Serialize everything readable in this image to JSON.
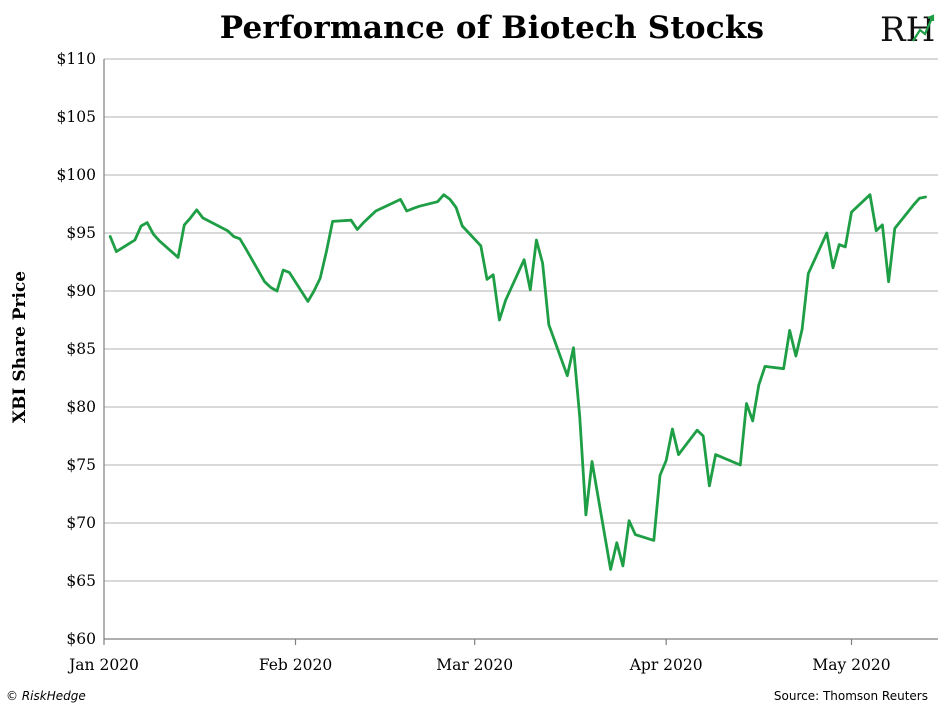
{
  "chart_data": {
    "type": "line",
    "title": "Performance of Biotech Stocks",
    "ylabel": "XBI Share Price",
    "xlabel": "",
    "ylim": [
      60,
      110
    ],
    "yticks": [
      60,
      65,
      70,
      75,
      80,
      85,
      90,
      95,
      100,
      105,
      110
    ],
    "ytick_labels": [
      "$60",
      "$65",
      "$70",
      "$75",
      "$80",
      "$85",
      "$90",
      "$95",
      "$100",
      "$105",
      "$110"
    ],
    "xlim": [
      "2020-01-01",
      "2020-05-15"
    ],
    "xticks": [
      {
        "date": "2020-01-01",
        "label": "Jan 2020"
      },
      {
        "date": "2020-02-01",
        "label": "Feb 2020"
      },
      {
        "date": "2020-03-01",
        "label": "Mar 2020"
      },
      {
        "date": "2020-04-01",
        "label": "Apr 2020"
      },
      {
        "date": "2020-05-01",
        "label": "May 2020"
      }
    ],
    "grid": "horizontal",
    "line_color": "#1e9e45",
    "series": [
      {
        "x": [
          "2020-01-02",
          "2020-01-03",
          "2020-01-06",
          "2020-01-07",
          "2020-01-08",
          "2020-01-09",
          "2020-01-10",
          "2020-01-13",
          "2020-01-14",
          "2020-01-15",
          "2020-01-16",
          "2020-01-17",
          "2020-01-21",
          "2020-01-22",
          "2020-01-23",
          "2020-01-24",
          "2020-01-27",
          "2020-01-28",
          "2020-01-29",
          "2020-01-30",
          "2020-01-31",
          "2020-02-03",
          "2020-02-04",
          "2020-02-05",
          "2020-02-06",
          "2020-02-07",
          "2020-02-10",
          "2020-02-11",
          "2020-02-12",
          "2020-02-13",
          "2020-02-14",
          "2020-02-18",
          "2020-02-19",
          "2020-02-20",
          "2020-02-21",
          "2020-02-24",
          "2020-02-25",
          "2020-02-26",
          "2020-02-27",
          "2020-02-28",
          "2020-03-02",
          "2020-03-03",
          "2020-03-04",
          "2020-03-05",
          "2020-03-06",
          "2020-03-09",
          "2020-03-10",
          "2020-03-11",
          "2020-03-12",
          "2020-03-13",
          "2020-03-16",
          "2020-03-17",
          "2020-03-18",
          "2020-03-19",
          "2020-03-20",
          "2020-03-23",
          "2020-03-24",
          "2020-03-25",
          "2020-03-26",
          "2020-03-27",
          "2020-03-30",
          "2020-03-31",
          "2020-04-01",
          "2020-04-02",
          "2020-04-03",
          "2020-04-06",
          "2020-04-07",
          "2020-04-08",
          "2020-04-09",
          "2020-04-13",
          "2020-04-14",
          "2020-04-15",
          "2020-04-16",
          "2020-04-17",
          "2020-04-20",
          "2020-04-21",
          "2020-04-22",
          "2020-04-23",
          "2020-04-24",
          "2020-04-27",
          "2020-04-28",
          "2020-04-29",
          "2020-04-30",
          "2020-05-01",
          "2020-05-04",
          "2020-05-05",
          "2020-05-06",
          "2020-05-07",
          "2020-05-08",
          "2020-05-11",
          "2020-05-12",
          "2020-05-13"
        ],
        "y": [
          94.7,
          93.4,
          94.4,
          95.6,
          95.9,
          94.9,
          94.3,
          92.9,
          95.7,
          96.3,
          97.0,
          96.3,
          95.2,
          94.7,
          94.5,
          93.6,
          90.8,
          90.3,
          90.0,
          91.8,
          91.6,
          89.1,
          90.0,
          91.1,
          93.4,
          96.0,
          96.1,
          95.3,
          95.9,
          96.4,
          96.9,
          97.9,
          96.9,
          97.1,
          97.3,
          97.7,
          98.3,
          97.9,
          97.2,
          95.6,
          93.9,
          91.0,
          91.4,
          87.5,
          89.2,
          92.7,
          90.1,
          94.4,
          92.4,
          87.1,
          82.7,
          85.1,
          79.2,
          70.7,
          75.3,
          66.0,
          68.3,
          66.3,
          70.2,
          69.0,
          68.5,
          74.1,
          75.4,
          78.1,
          75.9,
          78.0,
          77.5,
          73.2,
          75.9,
          75.0,
          80.3,
          78.8,
          81.9,
          83.5,
          83.3,
          86.6,
          84.4,
          86.7,
          91.5,
          95.0,
          92.0,
          94.0,
          93.8,
          96.8,
          98.3,
          95.2,
          95.7,
          90.8,
          95.4,
          97.4,
          98.0,
          98.1
        ]
      }
    ]
  },
  "footer": {
    "left": "© RiskHedge",
    "right": "Source: Thomson Reuters"
  },
  "logo_text": "RH"
}
